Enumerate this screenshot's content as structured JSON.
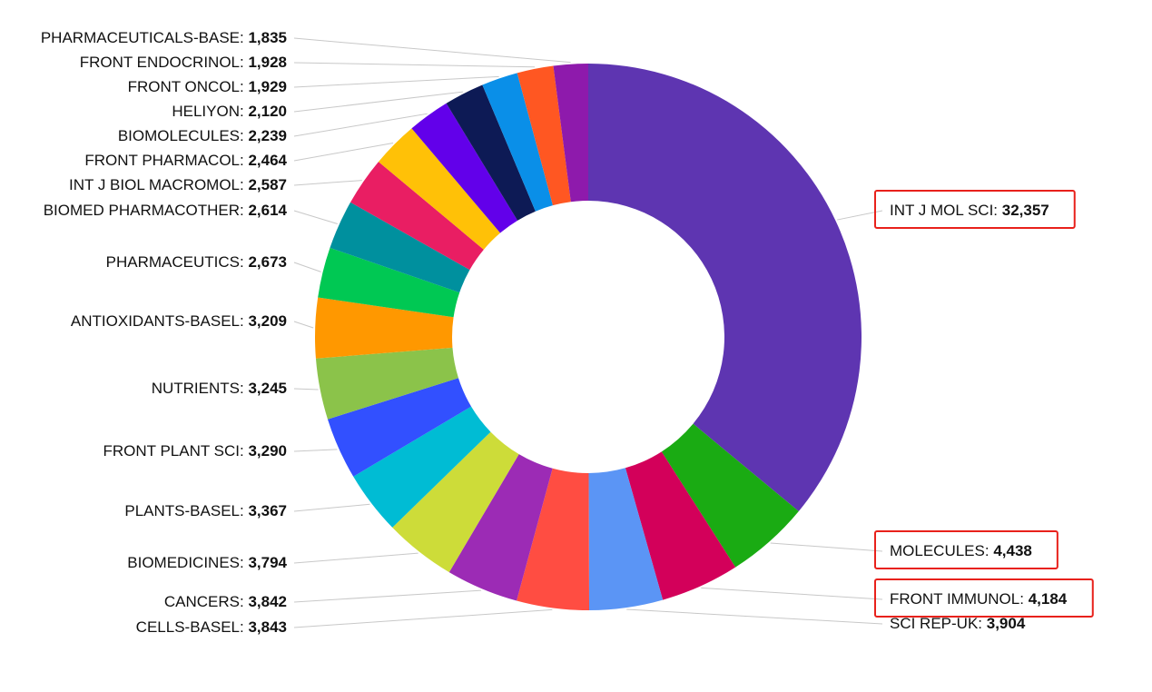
{
  "chart_data": {
    "type": "pie",
    "donut": true,
    "title": "",
    "slices": [
      {
        "label": "INT J MOL SCI",
        "value": 32357,
        "display": "32,357",
        "color": "#5e35b1",
        "side": "right",
        "highlighted": true
      },
      {
        "label": "MOLECULES",
        "value": 4438,
        "display": "4,438",
        "color": "#1aab13",
        "side": "right",
        "highlighted": true
      },
      {
        "label": "FRONT IMMUNOL",
        "value": 4184,
        "display": "4,184",
        "color": "#d3005a",
        "side": "right",
        "highlighted": true
      },
      {
        "label": "SCI REP-UK",
        "value": 3904,
        "display": "3,904",
        "color": "#5b95f5",
        "side": "right",
        "highlighted": false
      },
      {
        "label": "CELLS-BASEL",
        "value": 3843,
        "display": "3,843",
        "color": "#ff4d42",
        "side": "left",
        "highlighted": false
      },
      {
        "label": "CANCERS",
        "value": 3842,
        "display": "3,842",
        "color": "#9c2bb5",
        "side": "left",
        "highlighted": false
      },
      {
        "label": "BIOMEDICINES",
        "value": 3794,
        "display": "3,794",
        "color": "#cddc39",
        "side": "left",
        "highlighted": false
      },
      {
        "label": "PLANTS-BASEL",
        "value": 3367,
        "display": "3,367",
        "color": "#00bcd4",
        "side": "left",
        "highlighted": false
      },
      {
        "label": "FRONT PLANT SCI",
        "value": 3290,
        "display": "3,290",
        "color": "#3250ff",
        "side": "left",
        "highlighted": false
      },
      {
        "label": "NUTRIENTS",
        "value": 3245,
        "display": "3,245",
        "color": "#8bc34a",
        "side": "left",
        "highlighted": false
      },
      {
        "label": "ANTIOXIDANTS-BASEL",
        "value": 3209,
        "display": "3,209",
        "color": "#ff9800",
        "side": "left",
        "highlighted": false
      },
      {
        "label": "PHARMACEUTICS",
        "value": 2673,
        "display": "2,673",
        "color": "#00c853",
        "side": "left",
        "highlighted": false
      },
      {
        "label": "BIOMED PHARMACOTHER",
        "value": 2614,
        "display": "2,614",
        "color": "#00909e",
        "side": "left",
        "highlighted": false
      },
      {
        "label": "INT J BIOL MACROMOL",
        "value": 2587,
        "display": "2,587",
        "color": "#e91e63",
        "side": "left",
        "highlighted": false
      },
      {
        "label": "FRONT PHARMACOL",
        "value": 2464,
        "display": "2,464",
        "color": "#ffc107",
        "side": "left",
        "highlighted": false
      },
      {
        "label": "BIOMOLECULES",
        "value": 2239,
        "display": "2,239",
        "color": "#6200ea",
        "side": "left",
        "highlighted": false
      },
      {
        "label": "HELIYON",
        "value": 2120,
        "display": "2,120",
        "color": "#0d1a55",
        "side": "left",
        "highlighted": false
      },
      {
        "label": "FRONT ONCOL",
        "value": 1929,
        "display": "1,929",
        "color": "#0a8fe8",
        "side": "left",
        "highlighted": false
      },
      {
        "label": "FRONT ENDOCRINOL",
        "value": 1928,
        "display": "1,928",
        "color": "#ff5722",
        "side": "left",
        "highlighted": false
      },
      {
        "label": "PHARMACEUTICALS-BASE",
        "value": 1835,
        "display": "1,835",
        "color": "#8e1aac",
        "side": "left",
        "highlighted": false
      }
    ]
  }
}
